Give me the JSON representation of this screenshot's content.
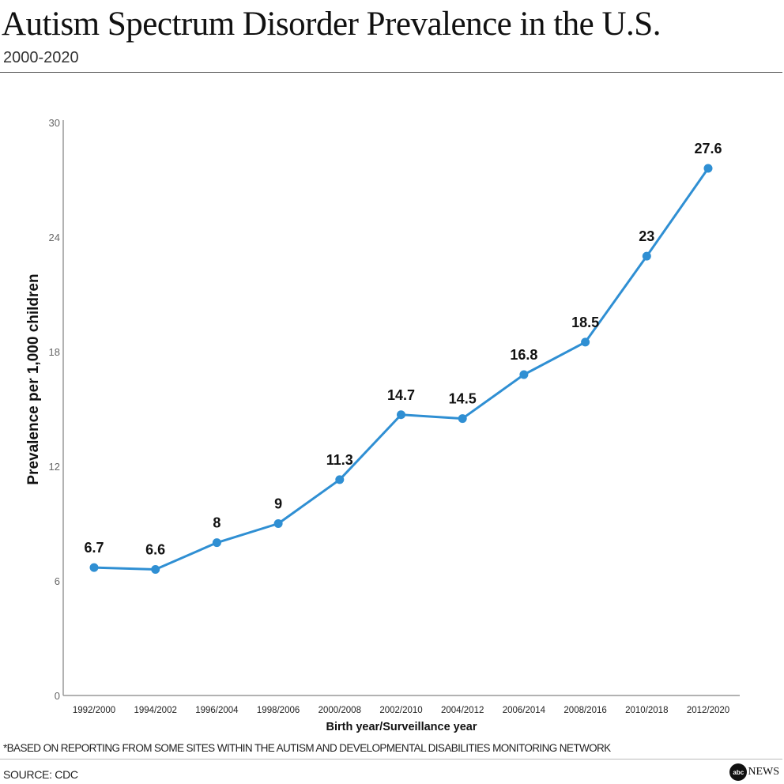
{
  "header": {
    "title": "Autism Spectrum Disorder Prevalence in the U.S.",
    "subtitle": "2000-2020"
  },
  "footer": {
    "footnote": "*BASED ON REPORTING FROM SOME SITES WITHIN THE AUTISM AND DEVELOPMENTAL DISABILITIES MONITORING NETWORK",
    "source": "SOURCE: CDC",
    "logo": "abc NEWS"
  },
  "chart_data": {
    "type": "line",
    "title": "Autism Spectrum Disorder Prevalence in the U.S.",
    "subtitle": "2000-2020",
    "xlabel": "Birth year/Surveillance year",
    "ylabel": "Prevalence per 1,000 children",
    "categories": [
      "1992/2000",
      "1994/2002",
      "1996/2004",
      "1998/2006",
      "2000/2008",
      "2002/2010",
      "2004/2012",
      "2006/2014",
      "2008/2016",
      "2010/2018",
      "2012/2020"
    ],
    "values": [
      6.7,
      6.6,
      8,
      9,
      11.3,
      14.7,
      14.5,
      16.8,
      18.5,
      23,
      27.6
    ],
    "labels": [
      "6.7",
      "6.6",
      "8",
      "9",
      "11.3",
      "14.7",
      "14.5",
      "16.8",
      "18.5",
      "23",
      "27.6"
    ],
    "yticks": [
      0,
      6,
      12,
      18,
      24,
      30
    ],
    "ylim": [
      0,
      30
    ],
    "grid": false,
    "color": "#2f8fd3"
  }
}
